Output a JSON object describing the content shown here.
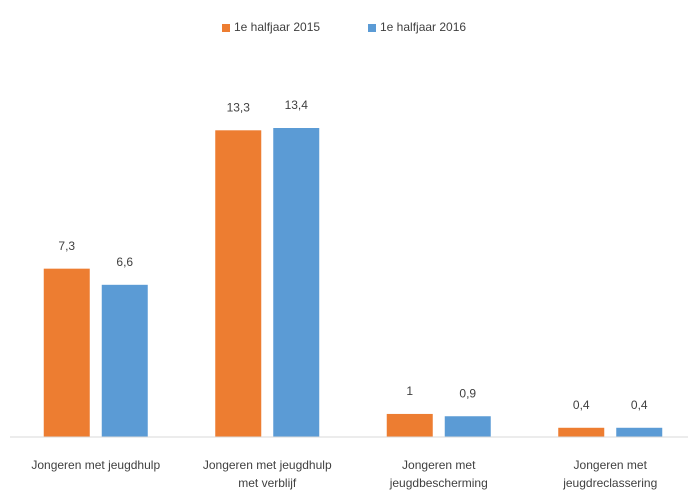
{
  "chart_data": {
    "type": "bar",
    "categories": [
      "Jongeren met jeugdhulp",
      "Jongeren met jeugdhulp met verblijf",
      "Jongeren met jeugdbescherming",
      "Jongeren met jeugdreclassering"
    ],
    "series": [
      {
        "name": "1e halfjaar 2015",
        "color": "#ed7d31",
        "values": [
          7.3,
          13.3,
          1,
          0.4
        ],
        "value_labels": [
          "7,3",
          "13,3",
          "1",
          "0,4"
        ]
      },
      {
        "name": "1e halfjaar 2016",
        "color": "#5b9bd5",
        "values": [
          6.6,
          13.4,
          0.9,
          0.4
        ],
        "value_labels": [
          "6,6",
          "13,4",
          "0,9",
          "0,4"
        ]
      }
    ],
    "legend": "top"
  }
}
